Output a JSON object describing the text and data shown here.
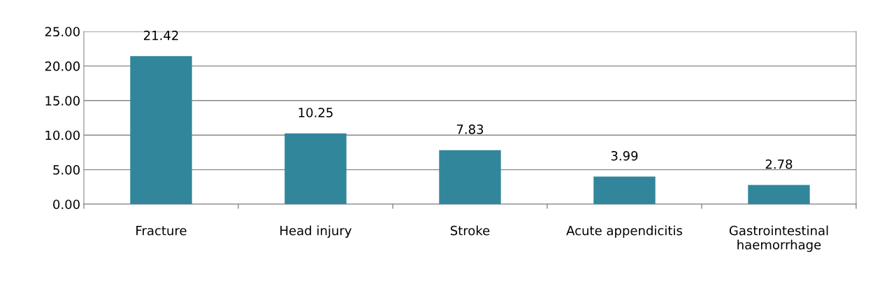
{
  "chart_data": {
    "type": "bar",
    "categories": [
      "Fracture",
      "Head injury",
      "Stroke",
      "Acute appendicitis",
      "Gastrointestinal\nhaemorrhage"
    ],
    "values": [
      21.42,
      10.25,
      7.83,
      3.99,
      2.78
    ],
    "color": "#31869b",
    "data_labels": true,
    "ylim": [
      0,
      25
    ],
    "yticks": [
      {
        "value": 0,
        "label": "0.00"
      },
      {
        "value": 5,
        "label": "5.00"
      },
      {
        "value": 10,
        "label": "10.00"
      },
      {
        "value": 15,
        "label": "15.00"
      },
      {
        "value": 20,
        "label": "20.00"
      },
      {
        "value": 25,
        "label": "25.00"
      }
    ],
    "grid": "y",
    "legend": false
  }
}
